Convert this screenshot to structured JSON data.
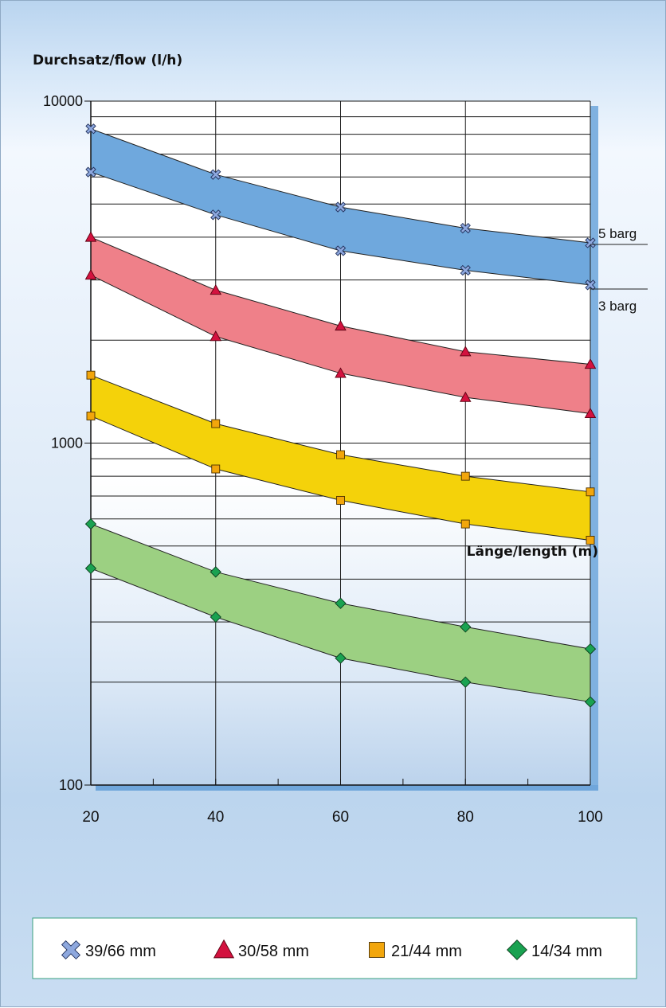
{
  "chart_data": {
    "type": "area",
    "title": "",
    "ylabel": "Durchsatz/flow (l/h)",
    "xlabel": "Länge/length (m)",
    "yscale": "log",
    "ylim": [
      100,
      10000
    ],
    "xlim": [
      20,
      100
    ],
    "x": [
      20,
      40,
      60,
      80,
      100
    ],
    "x_ticks": [
      "20",
      "40",
      "60",
      "80",
      "100"
    ],
    "y_ticks": [
      "100",
      "1000",
      "10000"
    ],
    "pressure_labels": {
      "high": "5 barg",
      "low": "3 barg"
    },
    "grid": true,
    "legend_position": "bottom",
    "series": [
      {
        "name": "39/66 mm",
        "marker": "x",
        "color": "#6fa8dd",
        "marker_color": "#8ea8de",
        "high": [
          8300,
          6100,
          4900,
          4250,
          3850
        ],
        "low": [
          6200,
          4650,
          3650,
          3200,
          2900
        ]
      },
      {
        "name": "30/58 mm",
        "marker": "triangle",
        "color": "#ef8089",
        "marker_color": "#d3123f",
        "high": [
          4000,
          2800,
          2200,
          1850,
          1700
        ],
        "low": [
          3100,
          2050,
          1600,
          1360,
          1220
        ]
      },
      {
        "name": "21/44 mm",
        "marker": "square",
        "color": "#f4d20a",
        "marker_color": "#f2a60c",
        "high": [
          1580,
          1140,
          925,
          800,
          720
        ],
        "low": [
          1200,
          840,
          680,
          580,
          520
        ]
      },
      {
        "name": "14/34 mm",
        "marker": "diamond",
        "color": "#9cd082",
        "marker_color": "#1aa251",
        "high": [
          580,
          420,
          340,
          290,
          250
        ],
        "low": [
          430,
          310,
          235,
          200,
          175
        ]
      }
    ]
  }
}
